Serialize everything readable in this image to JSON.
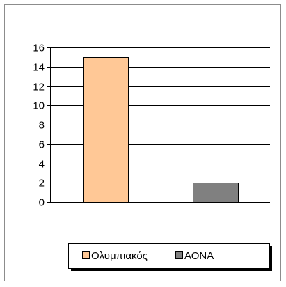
{
  "chart_data": {
    "type": "bar",
    "title": "",
    "xlabel": "",
    "ylabel": "",
    "ylim": [
      0,
      16
    ],
    "yticks": [
      0,
      2,
      4,
      6,
      8,
      10,
      12,
      14,
      16
    ],
    "grid": true,
    "legend_position": "bottom",
    "series": [
      {
        "name": "Ολυμπιακός",
        "value": 15,
        "color": "#FFC896"
      },
      {
        "name": "ΑΟΝΑ",
        "value": 2,
        "color": "#808080"
      }
    ]
  }
}
